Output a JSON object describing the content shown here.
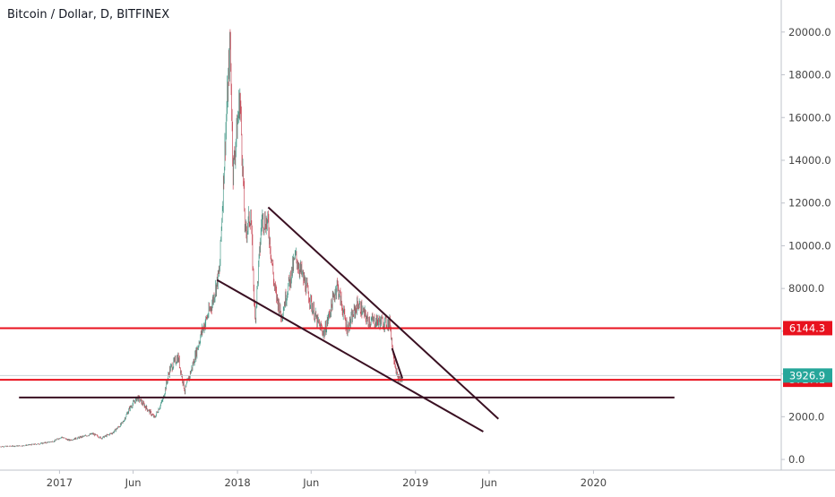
{
  "title": "Bitcoin / Dollar, D, BITFINEX",
  "colors": {
    "candle_up": "#4c9c8c",
    "candle_down": "#c94c5a",
    "trendline": "#3a1022",
    "support_line": "#e8121e",
    "current_price_bg": "#26a69a",
    "level_label_bg": "#e8121e",
    "axis_text": "#444444",
    "grid_axis": "#bfc3cb"
  },
  "chart_data": {
    "type": "candlestick",
    "title": "Bitcoin / Dollar, D, BITFINEX",
    "xlabel": "",
    "ylabel": "",
    "x_range": [
      "2016-09-01",
      "2021-01-20"
    ],
    "ylim": [
      -500,
      21500
    ],
    "grid": false,
    "y_ticks": [
      {
        "value": 0,
        "label": "0.0"
      },
      {
        "value": 2000,
        "label": "2000.0"
      },
      {
        "value": 4000,
        "label": "4000.0"
      },
      {
        "value": 6000,
        "label": "6000.0"
      },
      {
        "value": 8000,
        "label": "8000.0"
      },
      {
        "value": 10000,
        "label": "10000.0"
      },
      {
        "value": 12000,
        "label": "12000.0"
      },
      {
        "value": 14000,
        "label": "14000.0"
      },
      {
        "value": 16000,
        "label": "16000.0"
      },
      {
        "value": 18000,
        "label": "18000.0"
      },
      {
        "value": 20000,
        "label": "20000.0"
      }
    ],
    "x_ticks": [
      {
        "date": "2017-01-01",
        "label": "2017"
      },
      {
        "date": "2017-06-01",
        "label": "Jun"
      },
      {
        "date": "2018-01-01",
        "label": "2018"
      },
      {
        "date": "2018-06-01",
        "label": "Jun"
      },
      {
        "date": "2019-01-01",
        "label": "2019"
      },
      {
        "date": "2019-06-01",
        "label": "Jun"
      },
      {
        "date": "2020-01-01",
        "label": "2020"
      }
    ],
    "price_path": [
      [
        "2016-09-01",
        600
      ],
      [
        "2016-10-15",
        640
      ],
      [
        "2016-11-20",
        730
      ],
      [
        "2016-12-20",
        850
      ],
      [
        "2017-01-05",
        1050
      ],
      [
        "2017-01-20",
        900
      ],
      [
        "2017-02-15",
        1050
      ],
      [
        "2017-03-10",
        1200
      ],
      [
        "2017-03-28",
        1000
      ],
      [
        "2017-04-20",
        1250
      ],
      [
        "2017-05-10",
        1700
      ],
      [
        "2017-05-25",
        2400
      ],
      [
        "2017-06-10",
        2900
      ],
      [
        "2017-06-25",
        2500
      ],
      [
        "2017-07-15",
        1950
      ],
      [
        "2017-08-01",
        2800
      ],
      [
        "2017-08-15",
        4200
      ],
      [
        "2017-09-01",
        4800
      ],
      [
        "2017-09-15",
        3200
      ],
      [
        "2017-10-01",
        4400
      ],
      [
        "2017-10-20",
        6000
      ],
      [
        "2017-11-10",
        7300
      ],
      [
        "2017-11-25",
        8800
      ],
      [
        "2017-12-07",
        15000
      ],
      [
        "2017-12-17",
        19500
      ],
      [
        "2017-12-23",
        13500
      ],
      [
        "2018-01-06",
        17000
      ],
      [
        "2018-01-17",
        10500
      ],
      [
        "2018-01-28",
        11500
      ],
      [
        "2018-02-06",
        6500
      ],
      [
        "2018-02-20",
        11300
      ],
      [
        "2018-03-05",
        11000
      ],
      [
        "2018-03-18",
        8000
      ],
      [
        "2018-04-01",
        6700
      ],
      [
        "2018-04-12",
        7800
      ],
      [
        "2018-04-30",
        9500
      ],
      [
        "2018-05-20",
        8200
      ],
      [
        "2018-06-12",
        6500
      ],
      [
        "2018-06-28",
        5900
      ],
      [
        "2018-07-24",
        8200
      ],
      [
        "2018-08-14",
        6100
      ],
      [
        "2018-09-05",
        7300
      ],
      [
        "2018-09-25",
        6500
      ],
      [
        "2018-10-20",
        6450
      ],
      [
        "2018-11-10",
        6350
      ],
      [
        "2018-11-15",
        5200
      ],
      [
        "2018-11-25",
        3800
      ],
      [
        "2018-12-05",
        3700
      ]
    ],
    "series": [],
    "horizontal_levels": [
      {
        "value": 6144.3,
        "label": "6144.3",
        "color": "#e8121e"
      },
      {
        "value": 3727.1,
        "label": "3727.1",
        "color": "#e8121e"
      }
    ],
    "current_price": {
      "value": 3926.9,
      "label": "3926.9"
    },
    "trendlines": [
      {
        "start": [
          "2018-03-05",
          11800
        ],
        "end": [
          "2019-06-20",
          1900
        ]
      },
      {
        "start": [
          "2017-11-20",
          8400
        ],
        "end": [
          "2019-05-20",
          1300
        ]
      },
      {
        "start": [
          "2016-10-10",
          2900
        ],
        "end": [
          "2020-06-15",
          2900
        ]
      },
      {
        "start": [
          "2018-11-14",
          5200
        ],
        "end": [
          "2018-12-05",
          3800
        ]
      }
    ]
  }
}
